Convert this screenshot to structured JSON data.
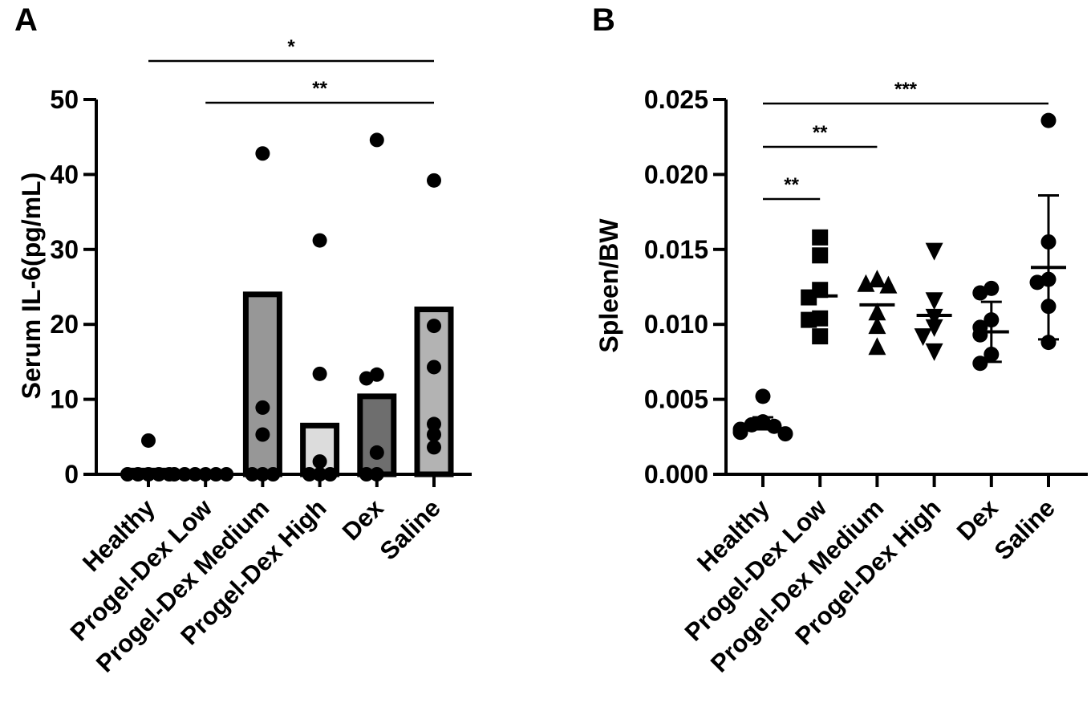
{
  "chart_data": [
    {
      "panel": "A",
      "type": "bar",
      "ylabel": "Serum IL-6(pg/mL)",
      "xlabel": "",
      "ylim": [
        0,
        50
      ],
      "yticks": [
        "0",
        "10",
        "20",
        "30",
        "40",
        "50"
      ],
      "categories": [
        "Healthy",
        "Progel-Dex Low",
        "Progel-Dex Medium",
        "Progel-Dex High",
        "Dex",
        "Saline"
      ],
      "bar_fills": [
        "#9a9a9a",
        "#9a9a9a",
        "#979797",
        "#dcdcdc",
        "#6e6e6e",
        "#b3b3b3"
      ],
      "values": [
        0.5,
        0,
        24,
        6.5,
        10.4,
        22
      ],
      "points": [
        [
          4.5,
          0,
          0,
          0,
          0,
          0
        ],
        [
          0,
          0,
          0,
          0,
          0,
          0
        ],
        [
          42.8,
          8.9,
          5.3,
          0,
          0,
          0
        ],
        [
          31.2,
          13.4,
          1.7,
          0,
          0,
          0
        ],
        [
          44.6,
          13.3,
          12.8,
          2.9,
          0,
          0
        ],
        [
          39.2,
          19.8,
          14.3,
          6.7,
          5.3,
          3.6
        ]
      ],
      "significance": [
        {
          "from": "Healthy",
          "to": "Saline",
          "label": "*"
        },
        {
          "from": "Progel-Dex Low",
          "to": "Saline",
          "label": "**"
        }
      ]
    },
    {
      "panel": "B",
      "type": "scatter",
      "ylabel": "Spleen/BW",
      "xlabel": "",
      "ylim": [
        0,
        0.025
      ],
      "yticks": [
        "0.000",
        "0.005",
        "0.010",
        "0.015",
        "0.020",
        "0.025"
      ],
      "categories": [
        "Healthy",
        "Progel-Dex Low",
        "Progel-Dex Medium",
        "Progel-Dex High",
        "Dex",
        "Saline"
      ],
      "markers": [
        "circle",
        "square",
        "triangle-up",
        "triangle-down",
        "circle",
        "circle"
      ],
      "means": [
        0.0034,
        0.0119,
        0.0113,
        0.0106,
        0.0095,
        0.0138
      ],
      "error_bars": [
        {
          "low": 0.003,
          "high": 0.0038
        },
        {
          "low": 0.0119,
          "high": 0.0119
        },
        {
          "low": 0.0113,
          "high": 0.0113
        },
        {
          "low": 0.0106,
          "high": 0.0106
        },
        {
          "low": 0.0075,
          "high": 0.0115
        },
        {
          "low": 0.009,
          "high": 0.0186
        }
      ],
      "points": [
        [
          0.0052,
          0.0035,
          0.0033,
          0.0032,
          0.003,
          0.0028,
          0.0027
        ],
        [
          0.0158,
          0.0146,
          0.0123,
          0.0118,
          0.0104,
          0.0103,
          0.0092
        ],
        [
          0.013,
          0.0127,
          0.0126,
          0.0108,
          0.0099,
          0.0085
        ],
        [
          0.0149,
          0.0116,
          0.0105,
          0.0098,
          0.0092,
          0.0082
        ],
        [
          0.0124,
          0.0121,
          0.0103,
          0.0098,
          0.0093,
          0.008,
          0.0074
        ],
        [
          0.0236,
          0.0155,
          0.013,
          0.0128,
          0.0112,
          0.0088
        ]
      ],
      "significance": [
        {
          "from": "Healthy",
          "to": "Saline",
          "label": "***"
        },
        {
          "from": "Healthy",
          "to": "Progel-Dex Medium",
          "label": "**"
        },
        {
          "from": "Healthy",
          "to": "Progel-Dex Low",
          "label": "**"
        }
      ]
    }
  ]
}
